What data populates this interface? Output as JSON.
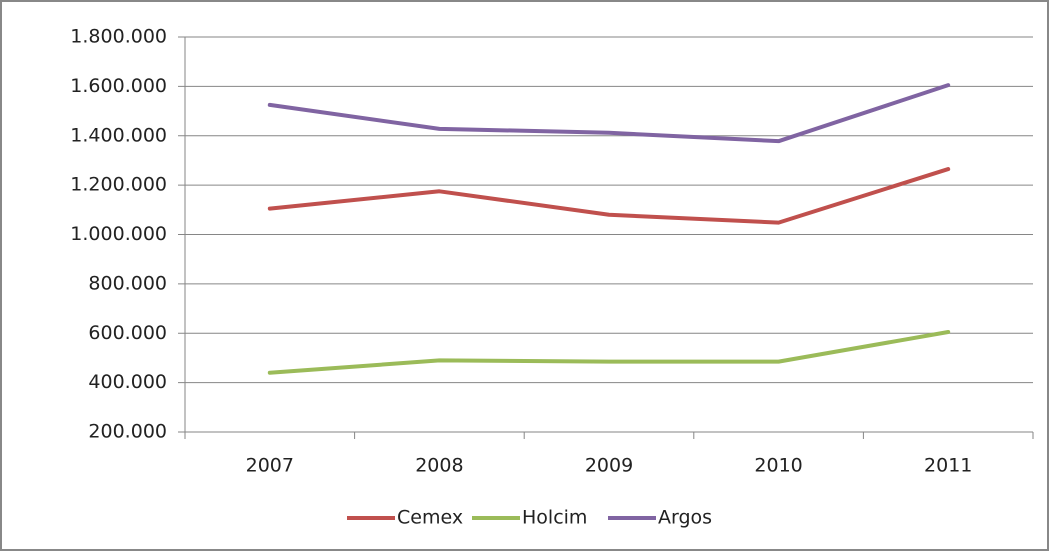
{
  "chart_data": {
    "type": "line",
    "categories": [
      "2007",
      "2008",
      "2009",
      "2010",
      "2011"
    ],
    "series": [
      {
        "name": "Cemex",
        "color": "#c0504d",
        "values": [
          1105000,
          1175000,
          1080000,
          1048000,
          1265000
        ]
      },
      {
        "name": "Holcim",
        "color": "#9bbb59",
        "values": [
          440000,
          490000,
          485000,
          485000,
          605000
        ]
      },
      {
        "name": "Argos",
        "color": "#8064a2",
        "values": [
          1525000,
          1428000,
          1412000,
          1378000,
          1605000
        ]
      }
    ],
    "ylim": [
      200000,
      1800000
    ],
    "yticks": [
      {
        "value": 200000,
        "label": "200.000"
      },
      {
        "value": 400000,
        "label": "400.000"
      },
      {
        "value": 600000,
        "label": "600.000"
      },
      {
        "value": 800000,
        "label": "800.000"
      },
      {
        "value": 1000000,
        "label": "1.000.000"
      },
      {
        "value": 1200000,
        "label": "1.200.000"
      },
      {
        "value": 1400000,
        "label": "1.400.000"
      },
      {
        "value": 1600000,
        "label": "1.600.000"
      },
      {
        "value": 1800000,
        "label": "1.800.000"
      }
    ],
    "grid": true,
    "legend": "bottom"
  }
}
